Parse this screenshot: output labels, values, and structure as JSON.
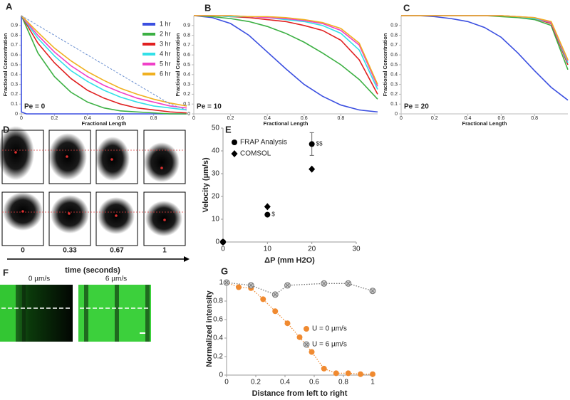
{
  "chart_data": [
    {
      "type": "line",
      "panel": "A",
      "annotation": "Pe = 0",
      "xlabel": "Fractional Length",
      "ylabel": "Fractional Concentration",
      "x": [
        0,
        0.1,
        0.2,
        0.3,
        0.4,
        0.5,
        0.6,
        0.7,
        0.8,
        0.9,
        1
      ],
      "xlim": [
        0,
        1
      ],
      "ylim": [
        0,
        1
      ],
      "xticks": [
        0,
        0.2,
        0.4,
        0.6,
        0.8
      ],
      "yticks": [
        0,
        0.1,
        0.2,
        0.3,
        0.4,
        0.5,
        0.6,
        0.7,
        0.8,
        0.9
      ],
      "legend": "upper right",
      "series": [
        {
          "name": "1 hr",
          "color": "#3b4fe0",
          "x": [
            0,
            0,
            0.03,
            1
          ],
          "values": [
            1,
            0.02,
            0,
            0
          ]
        },
        {
          "name": "2 hr",
          "color": "#3cb043",
          "values": [
            1,
            0.62,
            0.38,
            0.22,
            0.12,
            0.06,
            0.03,
            0.02,
            0.01,
            0,
            0
          ]
        },
        {
          "name": "3 hr",
          "color": "#e02020",
          "values": [
            1,
            0.72,
            0.52,
            0.36,
            0.24,
            0.16,
            0.1,
            0.06,
            0.04,
            0.02,
            0.01
          ]
        },
        {
          "name": "4 hr",
          "color": "#33e0e8",
          "values": [
            1,
            0.77,
            0.59,
            0.44,
            0.33,
            0.24,
            0.17,
            0.12,
            0.08,
            0.06,
            0.04
          ]
        },
        {
          "name": "5 hr",
          "color": "#f040c8",
          "values": [
            1,
            0.8,
            0.63,
            0.49,
            0.38,
            0.29,
            0.22,
            0.16,
            0.12,
            0.08,
            0.06
          ]
        },
        {
          "name": "6 hr",
          "color": "#f0b020",
          "values": [
            1,
            0.83,
            0.67,
            0.54,
            0.43,
            0.34,
            0.26,
            0.2,
            0.15,
            0.11,
            0.08
          ]
        },
        {
          "color": "#6a8fd0",
          "dash": true,
          "values": [
            1,
            0.9,
            0.8,
            0.7,
            0.6,
            0.5,
            0.4,
            0.3,
            0.2,
            0.1,
            0.04
          ]
        }
      ]
    },
    {
      "type": "line",
      "panel": "B",
      "annotation": "Pe = 10",
      "xlabel": "Fractional Length",
      "ylabel": "Fractional Concentration",
      "x": [
        0,
        0.1,
        0.2,
        0.3,
        0.4,
        0.5,
        0.6,
        0.7,
        0.8,
        0.9,
        1
      ],
      "xlim": [
        0,
        1
      ],
      "ylim": [
        0,
        1
      ],
      "xticks": [
        0,
        0.2,
        0.4,
        0.6,
        0.8
      ],
      "yticks": [
        0,
        0.1,
        0.2,
        0.3,
        0.4,
        0.5,
        0.6,
        0.7,
        0.8,
        0.9
      ],
      "series": [
        {
          "color": "#3b4fe0",
          "values": [
            1,
            0.98,
            0.92,
            0.8,
            0.63,
            0.46,
            0.3,
            0.18,
            0.09,
            0.04,
            0.02
          ]
        },
        {
          "color": "#3cb043",
          "values": [
            1,
            0.99,
            0.97,
            0.94,
            0.89,
            0.82,
            0.73,
            0.62,
            0.5,
            0.35,
            0.15
          ]
        },
        {
          "color": "#e02020",
          "values": [
            1,
            1,
            0.99,
            0.98,
            0.96,
            0.94,
            0.9,
            0.85,
            0.75,
            0.55,
            0.2
          ]
        },
        {
          "color": "#33e0e8",
          "values": [
            1,
            1,
            0.99,
            0.99,
            0.98,
            0.96,
            0.94,
            0.9,
            0.82,
            0.65,
            0.25
          ]
        },
        {
          "color": "#f040c8",
          "values": [
            1,
            1,
            1,
            0.99,
            0.98,
            0.97,
            0.95,
            0.92,
            0.85,
            0.7,
            0.28
          ]
        },
        {
          "color": "#f0b020",
          "values": [
            1,
            1,
            1,
            0.99,
            0.99,
            0.98,
            0.96,
            0.93,
            0.87,
            0.72,
            0.3
          ]
        }
      ]
    },
    {
      "type": "line",
      "panel": "C",
      "annotation": "Pe = 20",
      "xlabel": "Fractional Length",
      "ylabel": "Fractional Concentration",
      "x": [
        0,
        0.1,
        0.2,
        0.3,
        0.4,
        0.5,
        0.6,
        0.7,
        0.8,
        0.9,
        1
      ],
      "xlim": [
        0,
        1
      ],
      "ylim": [
        0,
        1
      ],
      "xticks": [
        0,
        0.2,
        0.4,
        0.6,
        0.8
      ],
      "yticks": [
        0,
        0.1,
        0.2,
        0.3,
        0.4,
        0.5,
        0.6,
        0.7,
        0.8,
        0.9
      ],
      "series": [
        {
          "color": "#3b4fe0",
          "values": [
            1,
            1,
            0.99,
            0.97,
            0.94,
            0.88,
            0.78,
            0.62,
            0.44,
            0.27,
            0.14
          ]
        },
        {
          "color": "#3cb043",
          "values": [
            1,
            1,
            1,
            1,
            1,
            1,
            0.99,
            0.98,
            0.96,
            0.9,
            0.45
          ]
        },
        {
          "color": "#e02020",
          "values": [
            1,
            1,
            1,
            1,
            1,
            1,
            1,
            0.99,
            0.97,
            0.92,
            0.5
          ]
        },
        {
          "color": "#33e0e8",
          "values": [
            1,
            1,
            1,
            1,
            1,
            1,
            1,
            0.99,
            0.97,
            0.93,
            0.52
          ]
        },
        {
          "color": "#f040c8",
          "values": [
            1,
            1,
            1,
            1,
            1,
            1,
            1,
            0.99,
            0.98,
            0.93,
            0.54
          ]
        },
        {
          "color": "#f0b020",
          "values": [
            1,
            1,
            1,
            1,
            1,
            1,
            1,
            0.99,
            0.98,
            0.94,
            0.55
          ]
        }
      ]
    },
    {
      "type": "scatter",
      "panel": "E",
      "xlabel": "ΔP (mm H2O)",
      "ylabel": "Velocity (µm/s)",
      "xlim": [
        0,
        30
      ],
      "ylim": [
        0,
        50
      ],
      "xticks": [
        0,
        10,
        20,
        30
      ],
      "yticks": [
        0,
        10,
        20,
        30,
        40,
        50
      ],
      "legend": "upper left",
      "annotations": [
        "$",
        "$$"
      ],
      "series": [
        {
          "name": "FRAP Analysis",
          "color": "#000000",
          "marker": "circle",
          "x": [
            0,
            10,
            20
          ],
          "values": [
            0,
            12,
            43
          ],
          "errors": [
            null,
            null,
            5
          ]
        },
        {
          "name": "COMSOL",
          "color": "#000000",
          "marker": "diamond",
          "x": [
            0,
            10,
            20
          ],
          "values": [
            0,
            15.5,
            32
          ]
        }
      ]
    },
    {
      "type": "scatter",
      "panel": "G",
      "xlabel": "Distance from left to right",
      "ylabel": "Normalized intensity",
      "xlim": [
        0,
        1
      ],
      "ylim": [
        0,
        1
      ],
      "xticks": [
        0,
        0.2,
        0.4,
        0.6,
        0.8,
        1
      ],
      "yticks": [
        0,
        0.2,
        0.4,
        0.6,
        0.8,
        1
      ],
      "legend": "center right",
      "series": [
        {
          "name": "U =   0 µm/s",
          "color": "#f08a30",
          "marker": "circle",
          "fit": "dotted",
          "x": [
            0,
            0.083,
            0.167,
            0.25,
            0.333,
            0.417,
            0.5,
            0.583,
            0.667,
            0.75,
            0.833,
            0.917,
            1
          ],
          "values": [
            1,
            0.95,
            0.94,
            0.82,
            0.69,
            0.56,
            0.41,
            0.25,
            0.07,
            0.02,
            0.02,
            0.01,
            0.01
          ]
        },
        {
          "name": "U =   6 µm/s",
          "color": "#777777",
          "marker": "circle-x",
          "fit": "dotted",
          "x": [
            0,
            0.167,
            0.333,
            0.417,
            0.667,
            0.833,
            1
          ],
          "values": [
            1,
            0.97,
            0.87,
            0.97,
            0.99,
            0.99,
            0.91
          ]
        }
      ]
    }
  ],
  "image_panels": {
    "D": {
      "panel": "D",
      "time_labels": [
        "0",
        "0.33",
        "0.67",
        "1"
      ],
      "axis_label": "time (seconds)"
    },
    "F": {
      "panel": "F",
      "captions": [
        "0 µm/s",
        "6 µm/s"
      ]
    }
  }
}
